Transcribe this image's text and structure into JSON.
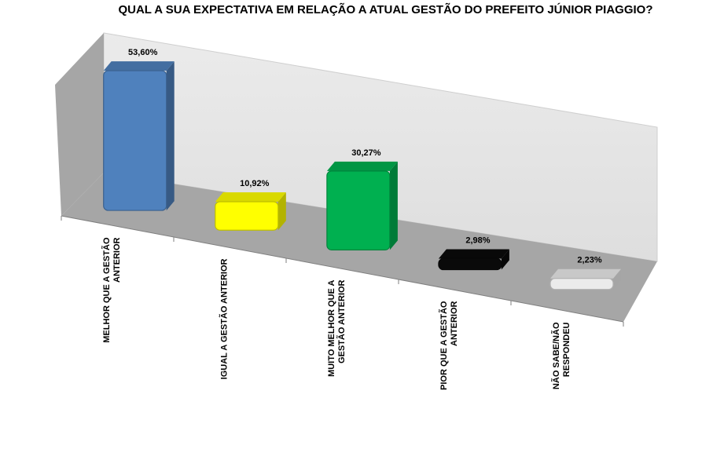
{
  "chart_data": {
    "type": "bar",
    "title": "QUAL A SUA EXPECTATIVA EM RELAÇÃO A ATUAL GESTÃO DO PREFEITO JÚNIOR PIAGGIO?",
    "categories": [
      [
        "MELHOR QUE A GESTÃO",
        "ANTERIOR"
      ],
      [
        "IGUAL A GESTÃO ANTERIOR"
      ],
      [
        "MUITO MELHOR QUE A",
        "GESTÃO ANTERIOR"
      ],
      [
        "PIOR QUE A GESTÃO",
        "ANTERIOR"
      ],
      [
        "NÃO SABE/NÃO",
        "RESPONDEU"
      ]
    ],
    "values": [
      53.6,
      10.92,
      30.27,
      2.98,
      2.23
    ],
    "data_labels": [
      "53,60%",
      "10,92%",
      "30,27%",
      "2,98%",
      "2,23%"
    ],
    "colors": [
      "#4f81bd",
      "#ffff00",
      "#00b050",
      "#0a0a0a",
      "#ebebeb"
    ],
    "ylim": [
      0,
      60
    ],
    "style": "3d",
    "legend": "none",
    "grid": false
  }
}
